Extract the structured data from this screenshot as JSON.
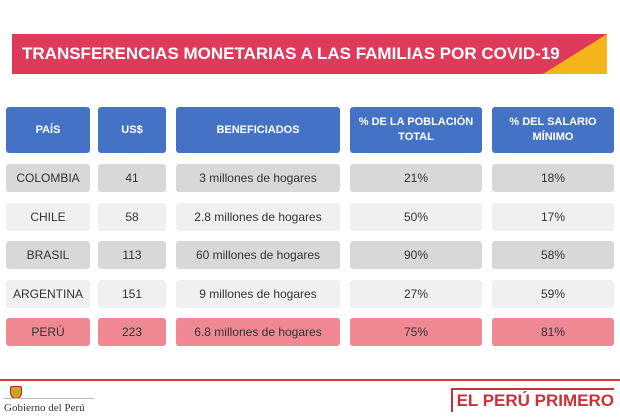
{
  "title": "TRANSFERENCIAS MONETARIAS A LAS FAMILIAS POR COVID-19",
  "colors": {
    "header": "#4472c4",
    "banner": "#e03a5a",
    "accent": "#f5b419",
    "highlight": "#f08894"
  },
  "headers": [
    "PAÍS",
    "US$",
    "BENEFICIADOS",
    "% DE LA POBLACIÓN TOTAL",
    "% DEL SALARIO MÍNIMO"
  ],
  "rows": [
    [
      "COLOMBIA",
      "41",
      "3 millones de hogares",
      "21%",
      "18%"
    ],
    [
      "CHILE",
      "58",
      "2.8  millones de hogares",
      "50%",
      "17%"
    ],
    [
      "BRASIL",
      "113",
      "60 millones de hogares",
      "90%",
      "58%"
    ],
    [
      "ARGENTINA",
      "151",
      "9 millones de hogares",
      "27%",
      "59%"
    ],
    [
      "PERÚ",
      "223",
      "6.8 millones de hogares",
      "75%",
      "81%"
    ]
  ],
  "footer": {
    "gov": "Gobierno del Perú",
    "logo": "EL PERÚ PRIMERO"
  }
}
